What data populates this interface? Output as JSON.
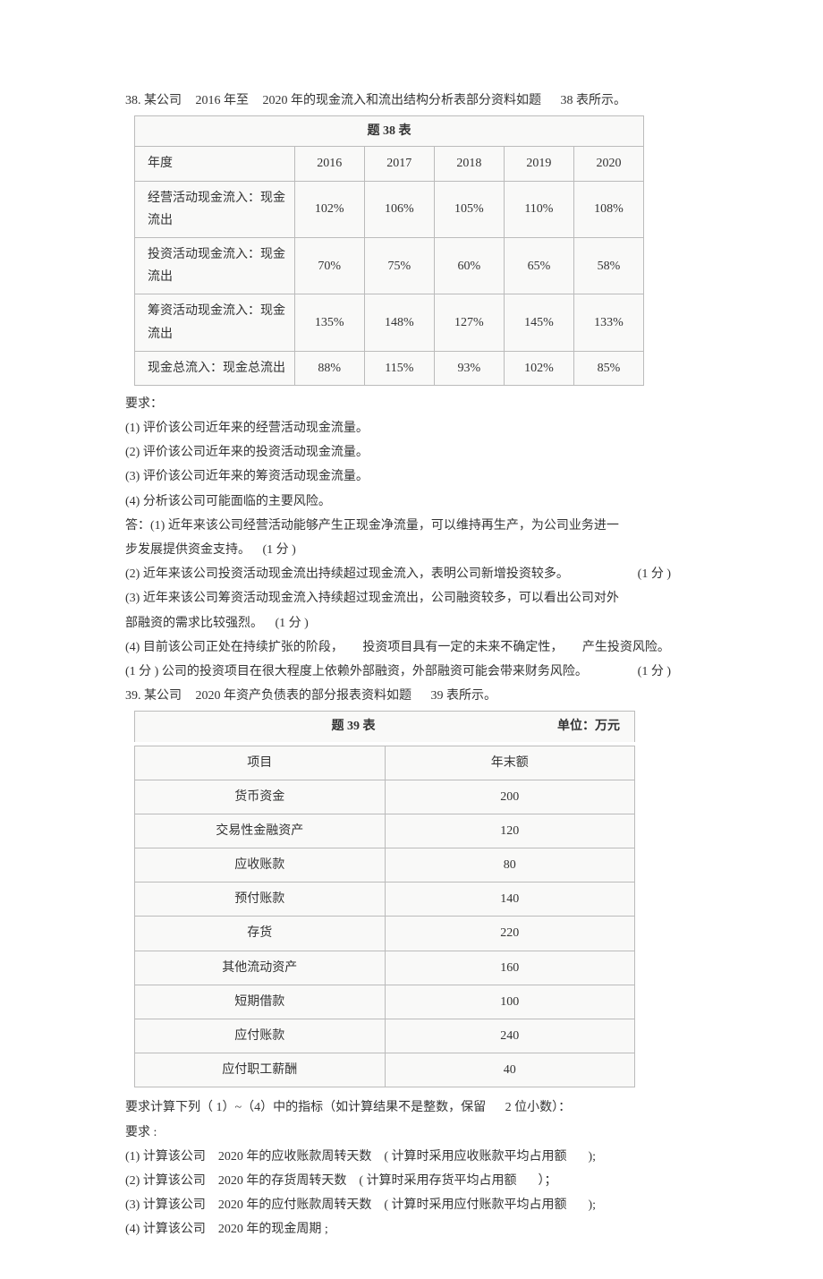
{
  "q38": {
    "intro_num": "38. 某公司",
    "intro_year": "2016 年至",
    "intro_year2": "2020 年的现金流入和流出结构分析表部分资料如题",
    "intro_ref": "38 表所示。",
    "caption": "题 38 表",
    "headers": [
      "年度",
      "2016",
      "2017",
      "2018",
      "2019",
      "2020"
    ],
    "rows": [
      [
        "经营活动现金流入：现金流出",
        "102%",
        "106%",
        "105%",
        "110%",
        "108%"
      ],
      [
        "投资活动现金流入：现金流出",
        "70%",
        "75%",
        "60%",
        "65%",
        "58%"
      ],
      [
        "筹资活动现金流入：现金流出",
        "135%",
        "148%",
        "127%",
        "145%",
        "133%"
      ],
      [
        "现金总流入：现金总流出",
        "88%",
        "115%",
        "93%",
        "102%",
        "85%"
      ]
    ],
    "req_label": "要求：",
    "reqs": [
      "(1) 评价该公司近年来的经营活动现金流量。",
      "(2) 评价该公司近年来的投资活动现金流量。",
      "(3) 评价该公司近年来的筹资活动现金流量。",
      "(4) 分析该公司可能面临的主要风险。"
    ],
    "ans1a": "答：(1) 近年来该公司经营活动能够产生正现金净流量，可以维持再生产，为公司业务进一",
    "ans1b_text": "步发展提供资金支持。",
    "ans1b_score": "(1 分 )",
    "ans2_text": "(2) 近年来该公司投资活动现金流出持续超过现金流入，表明公司新增投资较多。",
    "ans2_score": "(1 分 )",
    "ans3a": "(3) 近年来该公司筹资活动现金流入持续超过现金流出，公司融资较多，可以看出公司对外",
    "ans3b_text": "部融资的需求比较强烈。",
    "ans3b_score": "(1 分 )",
    "ans4a_text": "(4) 目前该公司正处在持续扩张的阶段，",
    "ans4a_mid": "投资项目具有一定的未来不确定性，",
    "ans4a_end": "产生投资风险。",
    "ans4b_text": "(1 分 ) 公司的投资项目在很大程度上依赖外部融资，外部融资可能会带来财务风险。",
    "ans4b_score": "(1 分 )"
  },
  "q39": {
    "intro_num": "39. 某公司",
    "intro_year": "2020 年资产负债表的部分报表资料如题",
    "intro_ref": "39 表所示。",
    "caption": "题 39 表",
    "unit": "单位：万元",
    "headers": [
      "项目",
      "年末额"
    ],
    "rows": [
      [
        "货币资金",
        "200"
      ],
      [
        "交易性金融资产",
        "120"
      ],
      [
        "应收账款",
        "80"
      ],
      [
        "预付账款",
        "140"
      ],
      [
        "存货",
        "220"
      ],
      [
        "其他流动资产",
        "160"
      ],
      [
        "短期借款",
        "100"
      ],
      [
        "应付账款",
        "240"
      ],
      [
        "应付职工薪酬",
        "40"
      ]
    ],
    "req_intro_a": "要求计算下列（",
    "req_intro_b": "1）~（4）中的指标（如计算结果不是整数，保留",
    "req_intro_c": "2 位小数）：",
    "req_label": "要求 :",
    "reqs": [
      {
        "a": "(1) 计算该公司",
        "b": "2020 年的应收账款周转天数",
        "c": "( 计算时采用应收账款平均占用额",
        "d": ");"
      },
      {
        "a": "(2) 计算该公司",
        "b": "2020 年的存货周转天数",
        "c": "( 计算时采用存货平均占用额",
        "d": "）；"
      },
      {
        "a": "(3) 计算该公司",
        "b": "2020 年的应付账款周转天数",
        "c": "( 计算时采用应付账款平均占用额",
        "d": ");"
      },
      {
        "a": "(4) 计算该公司",
        "b": "2020 年的现金周期 ;",
        "c": "",
        "d": ""
      }
    ]
  }
}
